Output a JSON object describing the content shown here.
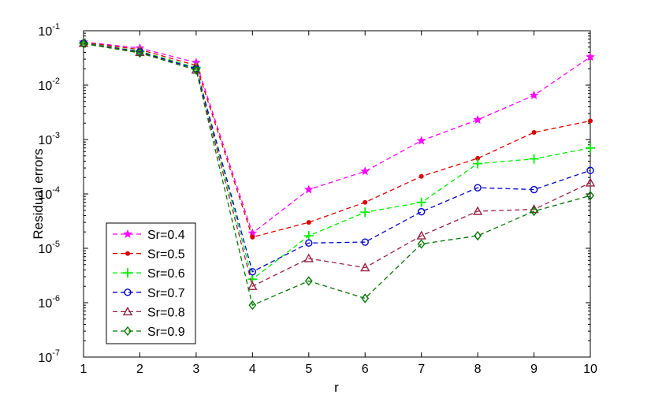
{
  "chart_data": {
    "type": "line",
    "xlabel": "r",
    "ylabel": "Residual errors",
    "x": [
      1,
      2,
      3,
      4,
      5,
      6,
      7,
      8,
      9,
      10
    ],
    "xlim": [
      1,
      10
    ],
    "ylim": [
      1e-07,
      0.1
    ],
    "yscale": "log",
    "x_ticks": [
      "1",
      "2",
      "3",
      "4",
      "5",
      "6",
      "7",
      "8",
      "9",
      "10"
    ],
    "y_ticks": [
      {
        "base": "10",
        "exp": "-7"
      },
      {
        "base": "10",
        "exp": "-6"
      },
      {
        "base": "10",
        "exp": "-5"
      },
      {
        "base": "10",
        "exp": "-4"
      },
      {
        "base": "10",
        "exp": "-3"
      },
      {
        "base": "10",
        "exp": "-2"
      },
      {
        "base": "10",
        "exp": "-1"
      }
    ],
    "grid": false,
    "legend_position": "lower-left",
    "series": [
      {
        "name": "Sr=0.4",
        "color": "#ff00ff",
        "marker": "star",
        "values": [
          0.062,
          0.048,
          0.026,
          1.9e-05,
          0.00012,
          0.00026,
          0.00095,
          0.0023,
          0.0065,
          0.033
        ]
      },
      {
        "name": "Sr=0.5",
        "color": "#dd0000",
        "marker": "dot",
        "values": [
          0.061,
          0.045,
          0.023,
          1.6e-05,
          3e-05,
          7e-05,
          0.00021,
          0.00045,
          0.00135,
          0.0022
        ]
      },
      {
        "name": "Sr=0.6",
        "color": "#00ee00",
        "marker": "plus",
        "values": [
          0.06,
          0.042,
          0.021,
          2.7e-06,
          1.7e-05,
          4.6e-05,
          7e-05,
          0.00036,
          0.00044,
          0.0007
        ]
      },
      {
        "name": "Sr=0.7",
        "color": "#0000cc",
        "marker": "circle",
        "values": [
          0.059,
          0.041,
          0.02,
          3.7e-06,
          1.25e-05,
          1.3e-05,
          4.7e-05,
          0.00013,
          0.00012,
          0.00027
        ]
      },
      {
        "name": "Sr=0.8",
        "color": "#992244",
        "marker": "triangle",
        "values": [
          0.059,
          0.04,
          0.019,
          2e-06,
          6.5e-06,
          4.4e-06,
          1.7e-05,
          4.8e-05,
          5.2e-05,
          0.00016
        ]
      },
      {
        "name": "Sr=0.9",
        "color": "#007700",
        "marker": "diamond",
        "values": [
          0.058,
          0.039,
          0.019,
          9e-07,
          2.5e-06,
          1.2e-06,
          1.2e-05,
          1.7e-05,
          4.8e-05,
          9.3e-05
        ]
      }
    ]
  }
}
